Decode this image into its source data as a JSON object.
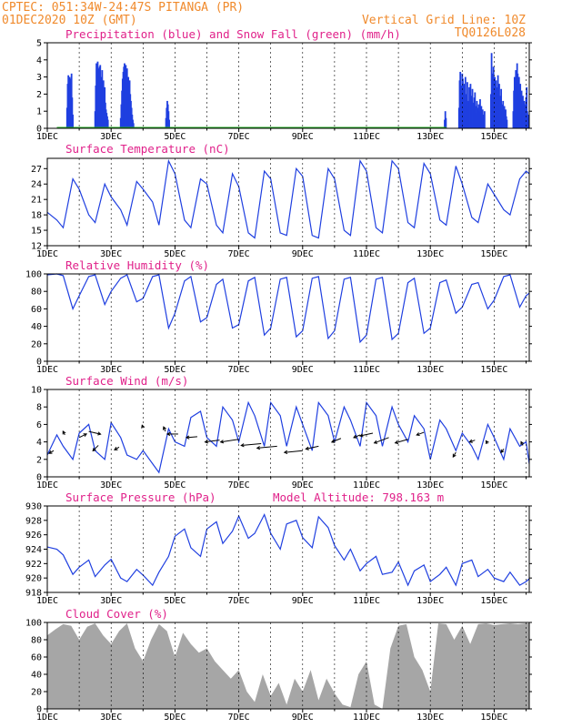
{
  "header": {
    "line1": "CPTEC:  051:34W-24:47S  PITANGA (PR)",
    "line2": "01DEC2020 10Z (GMT)",
    "grid_note": "Vertical Grid Line: 10Z",
    "code": "TQ0126L028"
  },
  "colors": {
    "blue": "#1f3fe0",
    "green": "#22aa22",
    "gray": "#a6a6a6",
    "magenta": "#e0218a",
    "orange": "#f08a2c"
  },
  "x_axis": {
    "labels": [
      "1DEC",
      "3DEC",
      "5DEC",
      "7DEC",
      "9DEC",
      "11DEC",
      "13DEC",
      "15DEC"
    ],
    "label_days": [
      0,
      2,
      4,
      6,
      8,
      10,
      12,
      14
    ],
    "range_days": [
      0,
      15.1
    ],
    "gridline_days": [
      1,
      2,
      3,
      4,
      5,
      6,
      7,
      8,
      9,
      10,
      11,
      12,
      13,
      14,
      15
    ]
  },
  "chart_data": [
    {
      "id": "precip",
      "type": "bar",
      "title": "Precipitation (blue) and Snow Fall (green) (mm/h)",
      "ylim": [
        0,
        5
      ],
      "yticks": [
        0,
        1,
        2,
        3,
        4,
        5
      ],
      "bursts": [
        {
          "x": [
            0.62,
            0.64,
            0.66,
            0.68,
            0.7,
            0.72,
            0.74,
            0.76,
            0.78,
            0.8
          ],
          "values": [
            1.2,
            2.6,
            3.1,
            2.8,
            3.0,
            2.2,
            2.9,
            3.2,
            1.8,
            0.8
          ]
        },
        {
          "x": [
            1.5,
            1.52,
            1.54,
            1.56,
            1.58,
            1.6,
            1.62,
            1.64,
            1.66,
            1.68,
            1.7,
            1.72,
            1.74,
            1.76,
            1.78,
            1.8,
            1.82,
            1.84,
            1.86,
            1.88,
            1.9
          ],
          "values": [
            1.0,
            2.5,
            3.8,
            3.3,
            3.9,
            3.5,
            2.8,
            3.6,
            3.7,
            3.0,
            2.6,
            3.4,
            2.2,
            2.8,
            1.9,
            2.4,
            1.5,
            1.1,
            0.9,
            0.7,
            0.5
          ]
        },
        {
          "x": [
            2.3,
            2.32,
            2.34,
            2.36,
            2.38,
            2.4,
            2.42,
            2.44,
            2.46,
            2.48,
            2.5,
            2.52,
            2.54,
            2.56,
            2.58,
            2.6,
            2.62,
            2.64,
            2.66,
            2.68,
            2.7
          ],
          "values": [
            0.6,
            1.4,
            2.2,
            2.9,
            3.3,
            3.6,
            3.8,
            3.5,
            3.7,
            3.2,
            3.5,
            2.6,
            3.0,
            2.2,
            2.8,
            2.0,
            1.6,
            1.2,
            0.8,
            0.5,
            0.3
          ]
        },
        {
          "x": [
            3.72,
            3.74,
            3.76,
            3.78,
            3.8,
            3.82
          ],
          "values": [
            0.6,
            1.2,
            1.6,
            1.4,
            1.0,
            0.5
          ]
        },
        {
          "x": [
            12.45,
            12.47,
            12.49
          ],
          "values": [
            0.5,
            1.0,
            0.6
          ]
        },
        {
          "x": [
            12.9,
            12.92,
            12.94,
            12.96,
            12.98,
            13.0,
            13.02,
            13.04,
            13.06,
            13.08,
            13.1,
            13.12,
            13.14,
            13.16,
            13.18,
            13.2,
            13.22,
            13.24,
            13.26,
            13.28,
            13.3,
            13.32,
            13.34,
            13.36,
            13.38,
            13.4,
            13.42,
            13.44,
            13.46,
            13.48,
            13.5,
            13.52,
            13.54,
            13.56,
            13.58,
            13.6,
            13.62,
            13.64,
            13.66,
            13.68,
            13.7
          ],
          "values": [
            1.2,
            2.8,
            3.3,
            2.0,
            2.5,
            3.2,
            2.9,
            1.8,
            2.6,
            2.2,
            3.0,
            1.4,
            2.0,
            2.7,
            1.6,
            1.1,
            2.4,
            1.8,
            2.6,
            1.2,
            1.9,
            2.3,
            1.5,
            1.0,
            1.8,
            2.1,
            1.3,
            0.9,
            1.6,
            1.2,
            0.8,
            1.4,
            1.0,
            1.7,
            0.9,
            1.3,
            0.7,
            1.1,
            0.8,
            0.6,
            1.0
          ]
        },
        {
          "x": [
            13.9,
            13.92,
            13.94,
            13.96,
            13.98,
            14.0,
            14.02,
            14.04,
            14.06,
            14.08,
            14.1,
            14.12,
            14.14,
            14.16,
            14.18,
            14.2,
            14.22,
            14.24,
            14.26,
            14.28,
            14.3,
            14.32,
            14.34,
            14.36,
            14.38,
            14.4
          ],
          "values": [
            2.0,
            4.4,
            3.2,
            2.6,
            3.6,
            2.2,
            3.0,
            1.5,
            2.8,
            2.4,
            1.8,
            3.1,
            2.0,
            2.6,
            1.2,
            1.9,
            2.3,
            1.4,
            1.0,
            1.6,
            0.9,
            1.3,
            0.8,
            1.1,
            0.7,
            0.5
          ]
        },
        {
          "x": [
            14.6,
            14.62,
            14.64,
            14.66,
            14.68,
            14.7,
            14.72,
            14.74,
            14.76,
            14.78,
            14.8,
            14.82,
            14.84,
            14.86,
            14.88,
            14.9,
            14.92,
            14.94,
            14.96,
            14.98,
            15.0,
            15.02,
            15.04,
            15.06,
            15.08
          ],
          "values": [
            1.0,
            2.2,
            3.0,
            2.4,
            3.4,
            2.8,
            3.8,
            3.2,
            2.6,
            3.0,
            2.0,
            2.6,
            1.8,
            2.2,
            1.4,
            1.9,
            1.2,
            1.6,
            0.9,
            1.4,
            1.8,
            2.4,
            1.0,
            0.8,
            0.5
          ]
        }
      ],
      "snow_line_x": [
        0.3,
        12.5
      ]
    },
    {
      "id": "temp",
      "type": "line",
      "title": "Surface Temperature (nC)",
      "ylim": [
        12,
        29
      ],
      "yticks": [
        12,
        15,
        18,
        21,
        24,
        27
      ],
      "x": [
        0.0,
        0.3,
        0.5,
        0.8,
        1.0,
        1.3,
        1.5,
        1.8,
        2.0,
        2.3,
        2.5,
        2.8,
        3.0,
        3.3,
        3.5,
        3.8,
        4.0,
        4.3,
        4.5,
        4.8,
        5.0,
        5.3,
        5.5,
        5.8,
        6.0,
        6.3,
        6.5,
        6.8,
        7.0,
        7.3,
        7.5,
        7.8,
        8.0,
        8.3,
        8.5,
        8.8,
        9.0,
        9.3,
        9.5,
        9.8,
        10.0,
        10.3,
        10.5,
        10.8,
        11.0,
        11.3,
        11.5,
        11.8,
        12.0,
        12.3,
        12.5,
        12.8,
        13.0,
        13.3,
        13.5,
        13.8,
        14.0,
        14.3,
        14.5,
        14.8,
        15.0,
        15.1
      ],
      "values": [
        18.5,
        17.0,
        15.5,
        25.0,
        23.0,
        18.0,
        16.5,
        24.0,
        21.5,
        19.0,
        16.0,
        24.5,
        23.0,
        20.5,
        16.0,
        28.5,
        26.0,
        17.0,
        15.5,
        25.0,
        24.0,
        16.0,
        14.5,
        26.0,
        23.5,
        14.5,
        13.5,
        26.5,
        25.0,
        14.5,
        14.0,
        27.0,
        25.5,
        14.0,
        13.5,
        27.0,
        25.0,
        15.0,
        14.0,
        28.5,
        26.5,
        15.5,
        14.5,
        28.5,
        27.0,
        16.5,
        15.5,
        28.0,
        26.0,
        17.0,
        16.0,
        27.5,
        24.0,
        17.5,
        16.5,
        24.0,
        22.0,
        19.0,
        18.0,
        25.0,
        26.5,
        26.0
      ]
    },
    {
      "id": "rh",
      "type": "line",
      "title": "Relative Humidity (%)",
      "ylim": [
        0,
        100
      ],
      "yticks": [
        0,
        20,
        40,
        60,
        80,
        100
      ],
      "x": [
        0.0,
        0.3,
        0.5,
        0.8,
        1.0,
        1.3,
        1.5,
        1.8,
        2.0,
        2.3,
        2.5,
        2.8,
        3.0,
        3.3,
        3.5,
        3.8,
        4.0,
        4.3,
        4.5,
        4.8,
        5.0,
        5.3,
        5.5,
        5.8,
        6.0,
        6.3,
        6.5,
        6.8,
        7.0,
        7.3,
        7.5,
        7.8,
        8.0,
        8.3,
        8.5,
        8.8,
        9.0,
        9.3,
        9.5,
        9.8,
        10.0,
        10.3,
        10.5,
        10.8,
        11.0,
        11.3,
        11.5,
        11.8,
        12.0,
        12.3,
        12.5,
        12.8,
        13.0,
        13.3,
        13.5,
        13.8,
        14.0,
        14.3,
        14.5,
        14.8,
        15.0,
        15.1
      ],
      "values": [
        99,
        100,
        98,
        60,
        75,
        97,
        99,
        65,
        80,
        95,
        99,
        68,
        72,
        97,
        99,
        38,
        55,
        92,
        97,
        45,
        50,
        88,
        94,
        38,
        42,
        92,
        96,
        30,
        38,
        94,
        96,
        28,
        35,
        95,
        97,
        26,
        35,
        94,
        96,
        22,
        30,
        94,
        96,
        25,
        32,
        90,
        95,
        32,
        38,
        90,
        93,
        55,
        62,
        88,
        90,
        60,
        70,
        97,
        99,
        62,
        75,
        78
      ]
    },
    {
      "id": "wind",
      "type": "line",
      "title": "Surface Wind (m/s)",
      "ylim": [
        0,
        10
      ],
      "yticks": [
        0,
        2,
        4,
        6,
        8,
        10
      ],
      "x": [
        0.0,
        0.3,
        0.5,
        0.8,
        1.0,
        1.3,
        1.5,
        1.8,
        2.0,
        2.3,
        2.5,
        2.8,
        3.0,
        3.3,
        3.5,
        3.8,
        4.0,
        4.3,
        4.5,
        4.8,
        5.0,
        5.3,
        5.5,
        5.8,
        6.0,
        6.3,
        6.5,
        6.8,
        7.0,
        7.3,
        7.5,
        7.8,
        8.0,
        8.3,
        8.5,
        8.8,
        9.0,
        9.3,
        9.5,
        9.8,
        10.0,
        10.3,
        10.5,
        10.8,
        11.0,
        11.3,
        11.5,
        11.8,
        12.0,
        12.3,
        12.5,
        12.8,
        13.0,
        13.3,
        13.5,
        13.8,
        14.0,
        14.3,
        14.5,
        14.8,
        15.0,
        15.1
      ],
      "values": [
        2.5,
        4.8,
        3.5,
        2.0,
        5.0,
        6.0,
        3.0,
        2.0,
        6.2,
        4.5,
        2.5,
        2.0,
        3.0,
        1.5,
        0.5,
        5.5,
        4.0,
        3.5,
        6.8,
        7.5,
        4.5,
        3.5,
        8.0,
        6.5,
        4.0,
        8.5,
        7.0,
        3.5,
        8.5,
        7.0,
        3.5,
        8.0,
        6.0,
        3.0,
        8.5,
        7.0,
        4.0,
        8.0,
        6.5,
        3.5,
        8.5,
        7.0,
        3.5,
        8.0,
        6.0,
        4.0,
        7.0,
        5.5,
        2.0,
        6.5,
        5.5,
        3.0,
        5.0,
        3.5,
        2.0,
        6.0,
        4.5,
        2.0,
        5.5,
        3.5,
        4.0,
        1.5
      ],
      "arrows": [
        {
          "x": 0.2,
          "v": 3.0,
          "dx": -5,
          "dy": 3
        },
        {
          "x": 0.55,
          "v": 4.8,
          "dx": -2,
          "dy": -4
        },
        {
          "x": 1.0,
          "v": 4.5,
          "dx": 8,
          "dy": -4
        },
        {
          "x": 1.3,
          "v": 5.2,
          "dx": 13,
          "dy": 3
        },
        {
          "x": 1.6,
          "v": 3.6,
          "dx": -6,
          "dy": 6
        },
        {
          "x": 2.25,
          "v": 3.4,
          "dx": -5,
          "dy": 3
        },
        {
          "x": 3.0,
          "v": 5.6,
          "dx": -1,
          "dy": -3
        },
        {
          "x": 3.7,
          "v": 5.2,
          "dx": -2,
          "dy": -5
        },
        {
          "x": 4.1,
          "v": 4.9,
          "dx": -12,
          "dy": 0
        },
        {
          "x": 4.7,
          "v": 4.6,
          "dx": -12,
          "dy": 1
        },
        {
          "x": 5.4,
          "v": 4.2,
          "dx": -16,
          "dy": 2
        },
        {
          "x": 6.0,
          "v": 4.3,
          "dx": -20,
          "dy": 3
        },
        {
          "x": 6.7,
          "v": 3.8,
          "dx": -22,
          "dy": 2
        },
        {
          "x": 7.2,
          "v": 3.5,
          "dx": -22,
          "dy": 2
        },
        {
          "x": 8.0,
          "v": 3.0,
          "dx": -20,
          "dy": 2
        },
        {
          "x": 8.5,
          "v": 3.5,
          "dx": -14,
          "dy": 3
        },
        {
          "x": 9.2,
          "v": 4.4,
          "dx": -10,
          "dy": 4
        },
        {
          "x": 9.8,
          "v": 4.8,
          "dx": -7,
          "dy": 3
        },
        {
          "x": 10.2,
          "v": 5.0,
          "dx": -14,
          "dy": 3
        },
        {
          "x": 10.7,
          "v": 4.5,
          "dx": -16,
          "dy": 6
        },
        {
          "x": 11.3,
          "v": 4.3,
          "dx": -14,
          "dy": 4
        },
        {
          "x": 11.8,
          "v": 5.1,
          "dx": -8,
          "dy": 3
        },
        {
          "x": 12.8,
          "v": 2.8,
          "dx": -3,
          "dy": 5
        },
        {
          "x": 13.4,
          "v": 4.2,
          "dx": -6,
          "dy": 2
        },
        {
          "x": 13.8,
          "v": 3.8,
          "dx": -2,
          "dy": -3
        },
        {
          "x": 14.3,
          "v": 3.2,
          "dx": -3,
          "dy": 4
        },
        {
          "x": 14.9,
          "v": 3.6,
          "dx": -2,
          "dy": -4
        }
      ]
    },
    {
      "id": "pressure",
      "type": "line",
      "title": "Surface Pressure (hPa)",
      "annotation": "Model Altitude: 798.163 m",
      "ylim": [
        918,
        930
      ],
      "yticks": [
        918,
        920,
        922,
        924,
        926,
        928,
        930
      ],
      "x": [
        0.0,
        0.3,
        0.5,
        0.8,
        1.0,
        1.3,
        1.5,
        1.8,
        2.0,
        2.3,
        2.5,
        2.8,
        3.0,
        3.3,
        3.5,
        3.8,
        4.0,
        4.3,
        4.5,
        4.8,
        5.0,
        5.3,
        5.5,
        5.8,
        6.0,
        6.3,
        6.5,
        6.8,
        7.0,
        7.3,
        7.5,
        7.8,
        8.0,
        8.3,
        8.5,
        8.8,
        9.0,
        9.3,
        9.5,
        9.8,
        10.0,
        10.3,
        10.5,
        10.8,
        11.0,
        11.3,
        11.5,
        11.8,
        12.0,
        12.3,
        12.5,
        12.8,
        13.0,
        13.3,
        13.5,
        13.8,
        14.0,
        14.3,
        14.5,
        14.8,
        15.0,
        15.1
      ],
      "values": [
        924.3,
        924.0,
        923.2,
        920.5,
        921.5,
        922.5,
        920.2,
        921.8,
        922.6,
        920.0,
        919.5,
        921.2,
        920.4,
        919.0,
        920.8,
        923.0,
        925.8,
        926.8,
        924.2,
        923.0,
        926.8,
        927.8,
        924.8,
        926.5,
        928.6,
        925.5,
        926.2,
        928.8,
        926.2,
        924.0,
        927.5,
        928.0,
        925.6,
        924.2,
        928.5,
        927.0,
        924.5,
        922.5,
        924.0,
        921.0,
        922.0,
        923.0,
        920.5,
        920.8,
        922.2,
        919.0,
        921.0,
        921.8,
        919.5,
        920.5,
        921.5,
        919.0,
        922.0,
        922.5,
        920.2,
        921.2,
        920.0,
        919.5,
        920.8,
        919.0,
        919.5,
        919.9
      ]
    },
    {
      "id": "cloud",
      "type": "area",
      "title": "Cloud Cover (%)",
      "ylim": [
        0,
        100
      ],
      "yticks": [
        0,
        20,
        40,
        60,
        80,
        100
      ],
      "x": [
        0.0,
        0.25,
        0.5,
        0.75,
        1.0,
        1.25,
        1.5,
        1.75,
        2.0,
        2.25,
        2.5,
        2.75,
        3.0,
        3.25,
        3.5,
        3.75,
        4.0,
        4.25,
        4.5,
        4.75,
        5.0,
        5.25,
        5.5,
        5.75,
        6.0,
        6.25,
        6.5,
        6.75,
        7.0,
        7.25,
        7.5,
        7.75,
        8.0,
        8.25,
        8.5,
        8.75,
        9.0,
        9.25,
        9.5,
        9.75,
        10.0,
        10.25,
        10.5,
        10.75,
        11.0,
        11.25,
        11.5,
        11.75,
        12.0,
        12.25,
        12.5,
        12.75,
        13.0,
        13.25,
        13.5,
        13.75,
        14.0,
        14.25,
        14.5,
        14.75,
        15.0,
        15.1
      ],
      "values": [
        85,
        92,
        98,
        96,
        80,
        95,
        99,
        85,
        75,
        90,
        99,
        70,
        55,
        80,
        98,
        90,
        60,
        88,
        75,
        65,
        70,
        55,
        45,
        35,
        45,
        20,
        8,
        40,
        15,
        30,
        5,
        35,
        20,
        45,
        10,
        35,
        18,
        5,
        2,
        40,
        55,
        5,
        0,
        70,
        96,
        98,
        60,
        45,
        20,
        99,
        98,
        80,
        96,
        75,
        98,
        99,
        97,
        98,
        99,
        98,
        99,
        99
      ]
    }
  ]
}
